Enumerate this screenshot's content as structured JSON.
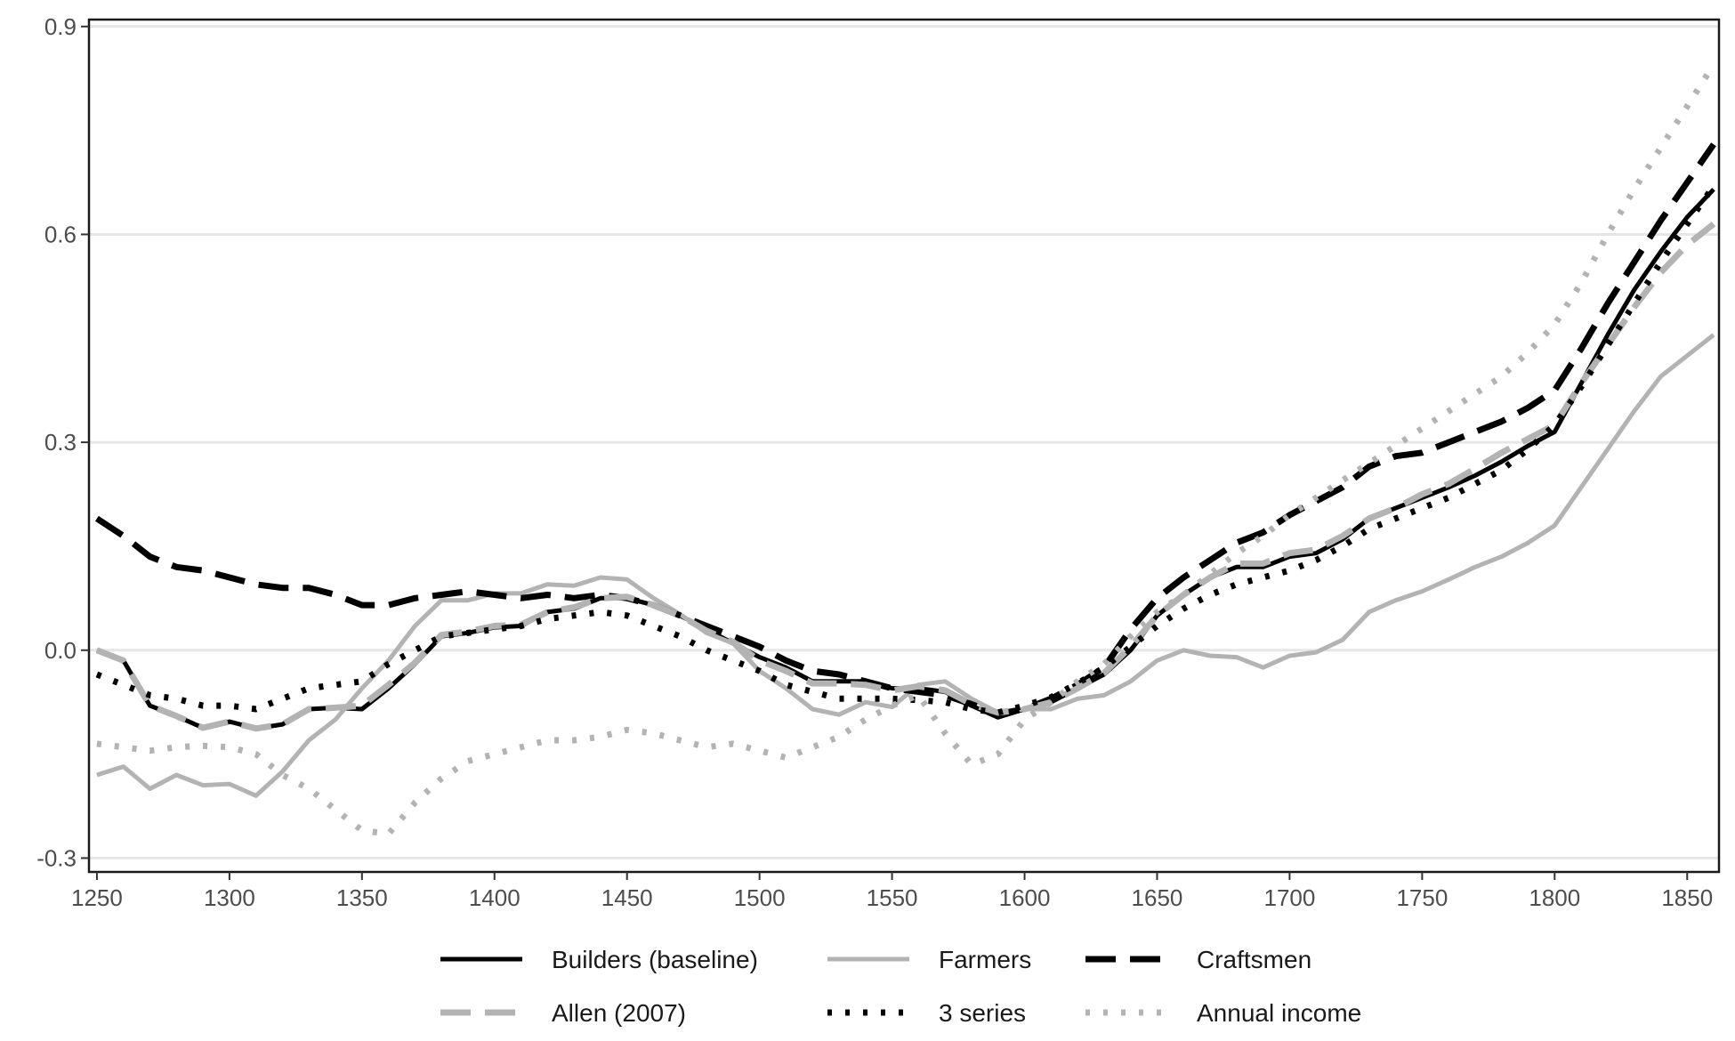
{
  "chart_data": {
    "type": "line",
    "title": "",
    "xlabel": "",
    "ylabel": "",
    "xlim": [
      1247,
      1862
    ],
    "ylim": [
      -0.32,
      0.91
    ],
    "x_ticks": [
      1250,
      1300,
      1350,
      1400,
      1450,
      1500,
      1550,
      1600,
      1650,
      1700,
      1750,
      1800,
      1850
    ],
    "x_tick_labels": [
      "1250",
      "1300",
      "1350",
      "1400",
      "1450",
      "1500",
      "1550",
      "1600",
      "1650",
      "1700",
      "1750",
      "1800",
      "1850"
    ],
    "y_ticks": [
      -0.3,
      0.0,
      0.3,
      0.6,
      0.9
    ],
    "y_tick_labels": [
      "-0.3",
      "0.0",
      "0.3",
      "0.6",
      "0.9"
    ],
    "grid": "horizontal-major",
    "legend_position": "bottom",
    "x": [
      1250,
      1260,
      1270,
      1280,
      1290,
      1300,
      1310,
      1320,
      1330,
      1340,
      1350,
      1360,
      1370,
      1380,
      1390,
      1400,
      1410,
      1420,
      1430,
      1440,
      1450,
      1460,
      1470,
      1480,
      1490,
      1500,
      1510,
      1520,
      1530,
      1540,
      1550,
      1560,
      1570,
      1580,
      1590,
      1600,
      1610,
      1620,
      1630,
      1640,
      1650,
      1660,
      1670,
      1680,
      1690,
      1700,
      1710,
      1720,
      1730,
      1740,
      1750,
      1760,
      1770,
      1780,
      1790,
      1800,
      1810,
      1820,
      1830,
      1840,
      1850,
      1860
    ],
    "series": [
      {
        "name": "Builders (baseline)",
        "color": "#000000",
        "dash": "solid",
        "width": 5,
        "values": [
          0.0,
          -0.015,
          -0.08,
          -0.095,
          -0.112,
          -0.103,
          -0.113,
          -0.107,
          -0.085,
          -0.083,
          -0.085,
          -0.055,
          -0.02,
          0.02,
          0.025,
          0.033,
          0.035,
          0.055,
          0.06,
          0.075,
          0.075,
          0.065,
          0.05,
          0.03,
          0.01,
          -0.01,
          -0.025,
          -0.045,
          -0.045,
          -0.045,
          -0.055,
          -0.055,
          -0.06,
          -0.08,
          -0.097,
          -0.085,
          -0.075,
          -0.055,
          -0.035,
          0.0,
          0.05,
          0.08,
          0.105,
          0.12,
          0.12,
          0.135,
          0.14,
          0.16,
          0.19,
          0.205,
          0.22,
          0.235,
          0.252,
          0.272,
          0.295,
          0.315,
          0.385,
          0.455,
          0.52,
          0.575,
          0.625,
          0.665
        ]
      },
      {
        "name": "Farmers",
        "color": "#b3b3b3",
        "dash": "solid",
        "width": 5,
        "values": [
          -0.18,
          -0.168,
          -0.2,
          -0.18,
          -0.195,
          -0.193,
          -0.21,
          -0.175,
          -0.13,
          -0.1,
          -0.055,
          -0.015,
          0.035,
          0.072,
          0.072,
          0.082,
          0.082,
          0.095,
          0.093,
          0.105,
          0.102,
          0.075,
          0.052,
          0.025,
          0.01,
          -0.03,
          -0.055,
          -0.085,
          -0.093,
          -0.075,
          -0.082,
          -0.05,
          -0.045,
          -0.07,
          -0.09,
          -0.085,
          -0.085,
          -0.07,
          -0.065,
          -0.045,
          -0.015,
          0.0,
          -0.008,
          -0.01,
          -0.025,
          -0.008,
          -0.003,
          0.015,
          0.055,
          0.072,
          0.085,
          0.102,
          0.12,
          0.135,
          0.155,
          0.18,
          0.235,
          0.29,
          0.345,
          0.395,
          0.425,
          0.455
        ]
      },
      {
        "name": "Craftsmen",
        "color": "#000000",
        "dash": "34 16",
        "width": 7,
        "values": [
          0.19,
          0.165,
          0.135,
          0.12,
          0.115,
          0.105,
          0.095,
          0.09,
          0.09,
          0.08,
          0.065,
          0.065,
          0.075,
          0.08,
          0.085,
          0.08,
          0.075,
          0.08,
          0.075,
          0.08,
          0.075,
          0.065,
          0.05,
          0.035,
          0.02,
          0.005,
          -0.015,
          -0.03,
          -0.035,
          -0.045,
          -0.055,
          -0.06,
          -0.065,
          -0.078,
          -0.092,
          -0.085,
          -0.07,
          -0.05,
          -0.025,
          0.03,
          0.075,
          0.105,
          0.13,
          0.155,
          0.17,
          0.195,
          0.215,
          0.235,
          0.265,
          0.28,
          0.285,
          0.3,
          0.315,
          0.33,
          0.35,
          0.375,
          0.435,
          0.5,
          0.56,
          0.62,
          0.675,
          0.73
        ]
      },
      {
        "name": "Allen (2007)",
        "color": "#b3b3b3",
        "dash": "34 16",
        "width": 7,
        "values": [
          0.0,
          -0.015,
          -0.08,
          -0.095,
          -0.112,
          -0.103,
          -0.113,
          -0.107,
          -0.085,
          -0.083,
          -0.08,
          -0.05,
          -0.018,
          0.022,
          0.027,
          0.035,
          0.037,
          0.055,
          0.062,
          0.075,
          0.077,
          0.065,
          0.05,
          0.028,
          0.012,
          -0.015,
          -0.03,
          -0.048,
          -0.048,
          -0.05,
          -0.058,
          -0.052,
          -0.058,
          -0.078,
          -0.09,
          -0.085,
          -0.075,
          -0.055,
          -0.033,
          0.005,
          0.05,
          0.08,
          0.105,
          0.125,
          0.125,
          0.14,
          0.145,
          0.165,
          0.19,
          0.205,
          0.225,
          0.24,
          0.262,
          0.285,
          0.305,
          0.325,
          0.385,
          0.44,
          0.495,
          0.545,
          0.585,
          0.615
        ]
      },
      {
        "name": "3 series",
        "color": "#000000",
        "dash": "5 15",
        "width": 7,
        "values": [
          -0.035,
          -0.05,
          -0.065,
          -0.07,
          -0.08,
          -0.08,
          -0.085,
          -0.07,
          -0.055,
          -0.05,
          -0.045,
          -0.02,
          0.0,
          0.02,
          0.025,
          0.03,
          0.035,
          0.045,
          0.05,
          0.055,
          0.05,
          0.035,
          0.02,
          0.0,
          -0.015,
          -0.03,
          -0.05,
          -0.06,
          -0.07,
          -0.07,
          -0.07,
          -0.072,
          -0.075,
          -0.085,
          -0.09,
          -0.08,
          -0.068,
          -0.048,
          -0.025,
          0.005,
          0.035,
          0.06,
          0.08,
          0.095,
          0.105,
          0.115,
          0.13,
          0.15,
          0.175,
          0.19,
          0.205,
          0.22,
          0.24,
          0.26,
          0.29,
          0.325,
          0.38,
          0.44,
          0.5,
          0.56,
          0.615,
          0.67
        ]
      },
      {
        "name": "Annual income",
        "color": "#b3b3b3",
        "dash": "5 15",
        "width": 7,
        "values": [
          -0.135,
          -0.14,
          -0.145,
          -0.14,
          -0.138,
          -0.14,
          -0.15,
          -0.18,
          -0.2,
          -0.23,
          -0.26,
          -0.265,
          -0.22,
          -0.185,
          -0.16,
          -0.15,
          -0.14,
          -0.13,
          -0.13,
          -0.125,
          -0.115,
          -0.12,
          -0.13,
          -0.14,
          -0.135,
          -0.145,
          -0.155,
          -0.14,
          -0.125,
          -0.1,
          -0.08,
          -0.065,
          -0.12,
          -0.165,
          -0.15,
          -0.1,
          -0.075,
          -0.045,
          -0.02,
          0.02,
          0.055,
          0.08,
          0.11,
          0.14,
          0.165,
          0.195,
          0.22,
          0.245,
          0.27,
          0.295,
          0.32,
          0.345,
          0.37,
          0.395,
          0.43,
          0.47,
          0.53,
          0.6,
          0.665,
          0.725,
          0.785,
          0.845
        ]
      }
    ]
  }
}
